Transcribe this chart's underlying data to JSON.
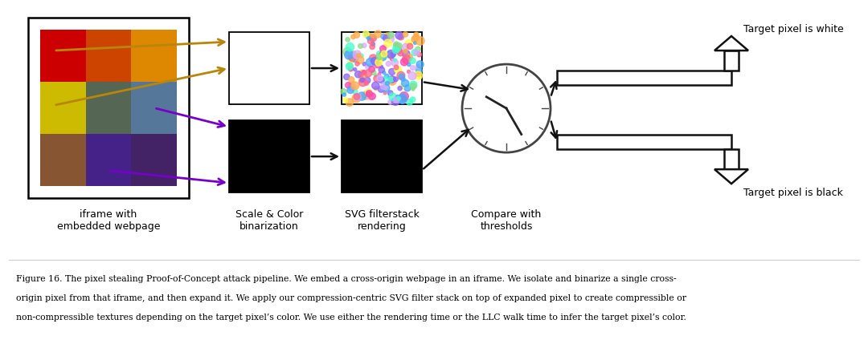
{
  "background_color": "#ffffff",
  "fig_width": 10.8,
  "fig_height": 4.35,
  "grid_colors": [
    [
      "#cc0000",
      "#cc4400",
      "#dd8800"
    ],
    [
      "#ccbb00",
      "#556655",
      "#557799"
    ],
    [
      "#885533",
      "#442288",
      "#442266"
    ]
  ],
  "label_iframe": "iframe with\nembedded webpage",
  "label_scale": "Scale & Color\nbinarization",
  "label_svg": "SVG filterstack\nrendering",
  "label_compare": "Compare with\nthresholds",
  "label_white": "Target pixel is white",
  "label_black": "Target pixel is black",
  "arrow_gold": "#b8860b",
  "arrow_purple": "#7700cc",
  "arrow_black": "#111111",
  "text_color": "#000000",
  "caption_fontsize": 7.8,
  "label_fontsize": 9.0,
  "caption_line1": "Figure 16. The pixel stealing Proof-of-Concept attack pipeline. We embed a cross-origin webpage in an iframe. We isolate and binarize a single cross-",
  "caption_line2": "origin pixel from that iframe, and then expand it. We apply our compression-centric SVG filter stack on top of expanded pixel to create compressible or",
  "caption_line3": "non-compressible textures depending on the target pixel’s color. We use either the rendering time or the LLC walk time to infer the target pixel’s color."
}
